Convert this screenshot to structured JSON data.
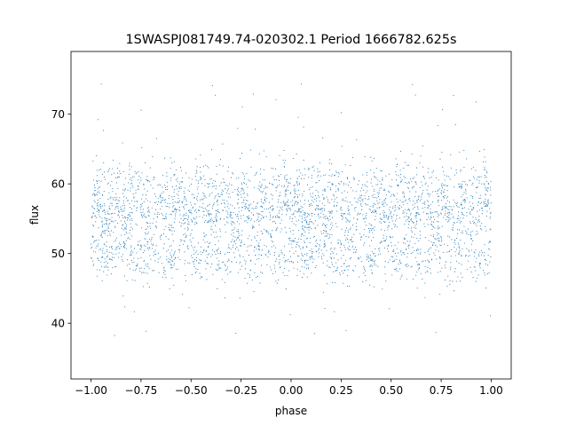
{
  "chart_data": {
    "type": "scatter",
    "title": "1SWASPJ081749.74-020302.1 Period 1666782.625s",
    "xlabel": "phase",
    "ylabel": "flux",
    "xlim": [
      -1.1,
      1.1
    ],
    "ylim": [
      32,
      79
    ],
    "xticks": [
      -1.0,
      -0.75,
      -0.5,
      -0.25,
      0.0,
      0.25,
      0.5,
      0.75,
      1.0
    ],
    "xtick_labels": [
      "−1.00",
      "−0.75",
      "−0.50",
      "−0.25",
      "0.00",
      "0.25",
      "0.50",
      "0.75",
      "1.00"
    ],
    "yticks": [
      40,
      50,
      60,
      70
    ],
    "ytick_labels": [
      "40",
      "50",
      "60",
      "70"
    ],
    "grid": false,
    "marker_color": "#1f77b4",
    "point_count": 3500,
    "band_levels": [
      50,
      56,
      60
    ],
    "outlier_range": [
      35,
      77
    ],
    "x_range": [
      -1.0,
      1.0
    ]
  }
}
